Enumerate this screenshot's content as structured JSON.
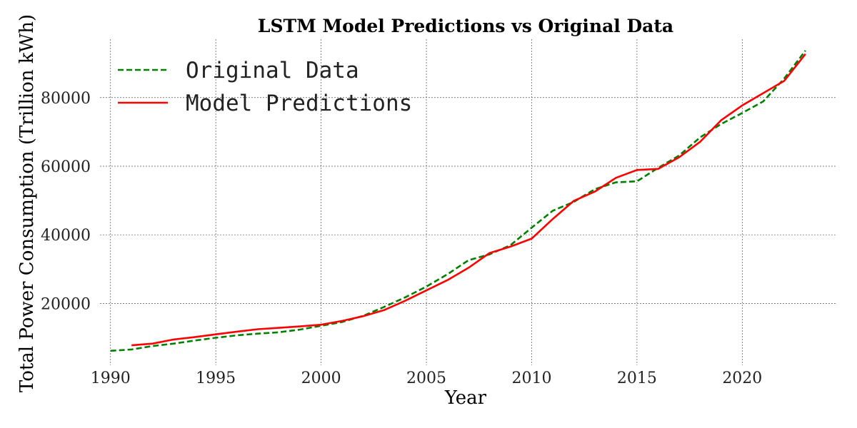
{
  "chart_data": {
    "type": "line",
    "title": "LSTM Model Predictions vs Original Data",
    "xlabel": "Year",
    "ylabel": "Total Power Consumption (Trillion kWh)",
    "xlim": [
      1989.5,
      2024.5
    ],
    "ylim": [
      2000,
      97000
    ],
    "x_ticks": [
      1990,
      1995,
      2000,
      2005,
      2010,
      2015,
      2020
    ],
    "y_ticks": [
      20000,
      40000,
      60000,
      80000
    ],
    "grid": true,
    "legend_position": "top-left",
    "series": [
      {
        "name": "Original Data",
        "color": "#008000",
        "style": "dashed",
        "x": [
          1990,
          1991,
          1992,
          1993,
          1994,
          1995,
          1996,
          1997,
          1998,
          1999,
          2000,
          2001,
          2002,
          2003,
          2004,
          2005,
          2006,
          2007,
          2008,
          2009,
          2010,
          2011,
          2012,
          2013,
          2014,
          2015,
          2016,
          2017,
          2018,
          2019,
          2020,
          2021,
          2022,
          2023
        ],
        "values": [
          6200,
          6600,
          7600,
          8300,
          9200,
          10000,
          10700,
          11200,
          11600,
          12400,
          13500,
          14600,
          16400,
          19000,
          21800,
          24900,
          28500,
          32600,
          34300,
          37000,
          42100,
          47000,
          49600,
          53300,
          55300,
          55600,
          59500,
          63100,
          68400,
          72300,
          75500,
          78900,
          85600,
          93700
        ]
      },
      {
        "name": "Model Predictions",
        "color": "#ff0000",
        "style": "solid",
        "x": [
          1991,
          1992,
          1993,
          1994,
          1995,
          1996,
          1997,
          1998,
          1999,
          2000,
          2001,
          2002,
          2003,
          2004,
          2005,
          2006,
          2007,
          2008,
          2009,
          2010,
          2011,
          2012,
          2013,
          2014,
          2015,
          2016,
          2017,
          2018,
          2019,
          2020,
          2021,
          2022,
          2023
        ],
        "values": [
          7800,
          8300,
          9500,
          10200,
          11000,
          11800,
          12500,
          12900,
          13300,
          13800,
          14900,
          16300,
          18100,
          20800,
          23800,
          26800,
          30400,
          34700,
          36600,
          38900,
          44600,
          49900,
          52600,
          56600,
          58900,
          59200,
          62600,
          67100,
          73400,
          77700,
          81300,
          84900,
          92700
        ]
      }
    ]
  }
}
